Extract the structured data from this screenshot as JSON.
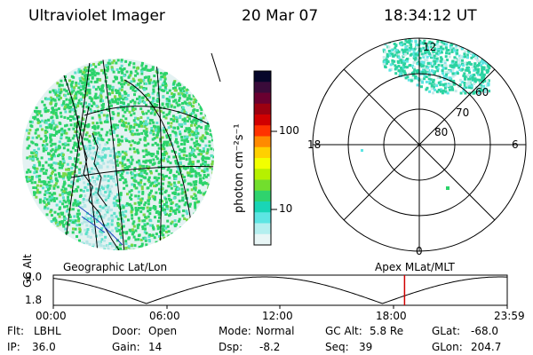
{
  "header": {
    "instrument": "Ultraviolet Imager",
    "date": "20 Mar 07",
    "time": "18:34:12 UT"
  },
  "colorbar": {
    "unit_label": "photon cm⁻²s⁻¹",
    "ticks": [
      "100",
      "10"
    ],
    "colors": [
      "#06062a",
      "#3a0b3a",
      "#6a0030",
      "#9c0010",
      "#d10000",
      "#ff3300",
      "#ff8a00",
      "#ffd000",
      "#f2ff00",
      "#b6f000",
      "#72de2d",
      "#2fd36d",
      "#19d5b6",
      "#5de5e3",
      "#b4efef",
      "#e8f6f6"
    ]
  },
  "geographic_map": {
    "label": "Geographic Lat/Lon",
    "aurora_colors": [
      "#2bd36a",
      "#5be0c9",
      "#7ad84a",
      "#b4e6e6"
    ]
  },
  "polar_map": {
    "label": "Apex  MLat/MLT",
    "mlt_labels": [
      "12",
      "18",
      "6",
      "0"
    ],
    "mlat_labels": [
      "60",
      "70",
      "80"
    ]
  },
  "altitude_plot": {
    "ylabel": "GC Alt",
    "yticks": [
      "9.0",
      "1.8"
    ],
    "xticks": [
      "00:00",
      "06:00",
      "12:00",
      "18:00",
      "23:59"
    ],
    "current_time_marker_hour": 18.57,
    "marker_color": "#d00000"
  },
  "footer": {
    "filter_label": "Flt:",
    "filter": "LBHL",
    "door_label": "Door:",
    "door": "Open",
    "mode_label": "Mode:",
    "mode": "Normal",
    "gcalt_label": "GC Alt:",
    "gcalt": "5.8 Re",
    "glat_label": "GLat:",
    "glat": "-68.0",
    "ip_label": "IP:",
    "ip": "36.0",
    "gain_label": "Gain:",
    "gain": "14",
    "dsp_label": "Dsp:",
    "dsp": "-8.2",
    "seq_label": "Seq:",
    "seq": "39",
    "glon_label": "GLon:",
    "glon": "204.7"
  }
}
